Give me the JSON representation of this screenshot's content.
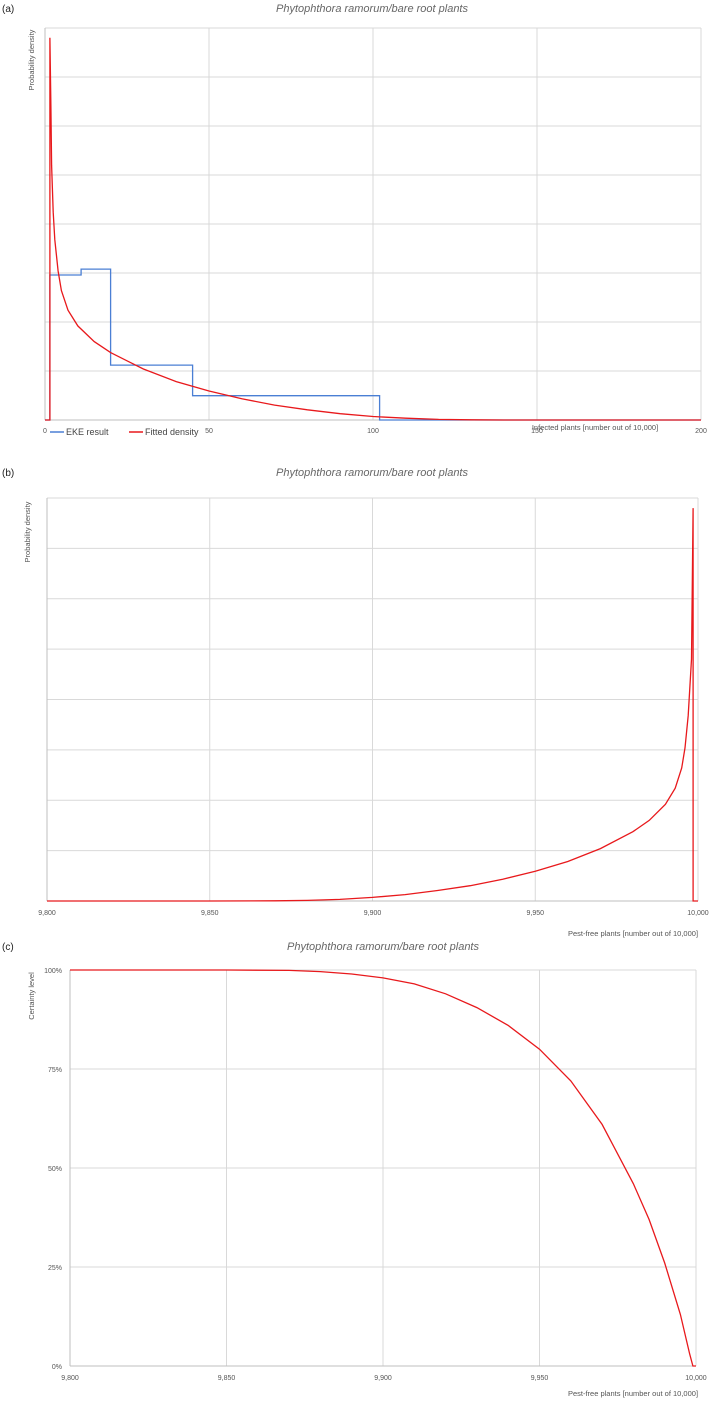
{
  "chart_data": [
    {
      "panel_label": "(a)",
      "type": "line",
      "title": "Phytophthora ramorum/bare root plants",
      "xlabel": "Infected plants [number out of 10,000]",
      "ylabel": "Probability density",
      "xlim": [
        0,
        200
      ],
      "xticks": [
        "0",
        "50",
        "100",
        "150",
        "200"
      ],
      "ylim": [
        0,
        1
      ],
      "grid": true,
      "legend_position": "bottom-left",
      "series": [
        {
          "name": "EKE result",
          "color": "#4a7fd4",
          "step": true,
          "x": [
            0,
            1.5,
            1.5,
            11,
            11,
            20,
            20,
            45,
            45,
            102,
            102,
            200
          ],
          "y": [
            0,
            0,
            0.37,
            0.37,
            0.385,
            0.385,
            0.14,
            0.14,
            0.062,
            0.062,
            0,
            0
          ]
        },
        {
          "name": "Fitted density",
          "color": "#e8191c",
          "x": [
            0,
            1.5,
            1.5,
            1.8,
            2,
            2.5,
            3,
            4,
            5,
            7,
            10,
            15,
            20,
            30,
            40,
            50,
            60,
            70,
            80,
            90,
            100,
            110,
            120,
            130,
            140,
            150,
            160,
            180,
            200
          ],
          "y": [
            0,
            0,
            0.975,
            0.8,
            0.65,
            0.53,
            0.46,
            0.38,
            0.33,
            0.28,
            0.24,
            0.2,
            0.172,
            0.13,
            0.098,
            0.074,
            0.054,
            0.038,
            0.026,
            0.016,
            0.009,
            0.0045,
            0.0015,
            0.0004,
            0.0001,
            0,
            0,
            0,
            0
          ]
        }
      ]
    },
    {
      "panel_label": "(b)",
      "type": "line",
      "title": "Phytophthora ramorum/bare root plants",
      "xlabel": "Pest-free plants [number out of 10,000]",
      "ylabel": "Probability density",
      "xlim": [
        9800,
        10000
      ],
      "xticks": [
        "9,800",
        "9,850",
        "9,900",
        "9,950",
        "10,000"
      ],
      "ylim": [
        0,
        1
      ],
      "grid": true,
      "series": [
        {
          "name": "",
          "color": "#e8191c",
          "x": [
            9800,
            9850,
            9870,
            9880,
            9890,
            9900,
            9910,
            9920,
            9930,
            9940,
            9950,
            9960,
            9970,
            9980,
            9985,
            9990,
            9993,
            9995,
            9996,
            9997,
            9998,
            9998.5,
            9998.5,
            9999,
            10000
          ],
          "y": [
            0,
            0,
            0.0005,
            0.0015,
            0.004,
            0.009,
            0.016,
            0.026,
            0.038,
            0.054,
            0.074,
            0.098,
            0.13,
            0.172,
            0.2,
            0.24,
            0.28,
            0.33,
            0.38,
            0.46,
            0.6,
            0.975,
            0,
            0,
            0
          ]
        }
      ]
    },
    {
      "panel_label": "(c)",
      "type": "line",
      "title": "Phytophthora ramorum/bare root plants",
      "xlabel": "Pest-free plants [number out of 10,000]",
      "ylabel": "Certainty level",
      "xlim": [
        9800,
        10000
      ],
      "xticks": [
        "9,800",
        "9,850",
        "9,900",
        "9,950",
        "10,000"
      ],
      "ylim": [
        0,
        1
      ],
      "yticks": [
        "0%",
        "25%",
        "50%",
        "75%",
        "100%"
      ],
      "grid": true,
      "series": [
        {
          "name": "",
          "color": "#e8191c",
          "x": [
            9800,
            9850,
            9870,
            9880,
            9890,
            9900,
            9910,
            9920,
            9930,
            9940,
            9950,
            9960,
            9970,
            9980,
            9985,
            9990,
            9995,
            9998,
            9999,
            10000
          ],
          "y": [
            1,
            1,
            0.999,
            0.996,
            0.99,
            0.98,
            0.965,
            0.94,
            0.905,
            0.86,
            0.8,
            0.72,
            0.61,
            0.46,
            0.37,
            0.26,
            0.13,
            0.03,
            0,
            0
          ]
        }
      ]
    }
  ]
}
